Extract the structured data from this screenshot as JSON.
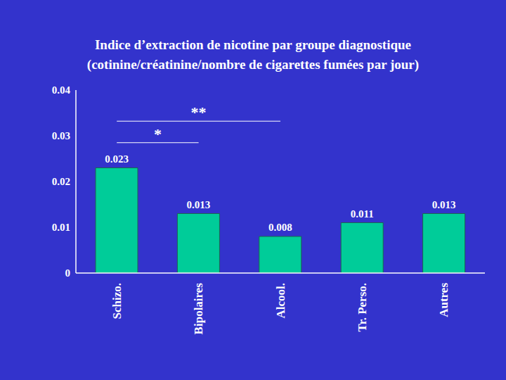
{
  "chart_data": {
    "type": "bar",
    "title": "Indice d’extraction de nicotine par groupe diagnostique",
    "subtitle": "(cotinine/créatinine/nombre de cigarettes fumées par jour)",
    "categories": [
      "Schizo.",
      "Bipolaires",
      "Alcool.",
      "Tr. Perso.",
      "Autres"
    ],
    "values": [
      0.023,
      0.013,
      0.008,
      0.011,
      0.013
    ],
    "color": "#00cc99",
    "ylim": [
      0,
      0.04
    ],
    "yticks": [
      0,
      0.01,
      0.02,
      0.03,
      0.04
    ],
    "grid": false,
    "data_labels": true,
    "annotations": [
      {
        "text": "**",
        "from": "Schizo.",
        "to": "Alcool.",
        "y": 0.0332
      },
      {
        "text": "*",
        "from": "Schizo.",
        "to": "Bipolaires",
        "y": 0.0285
      }
    ]
  }
}
